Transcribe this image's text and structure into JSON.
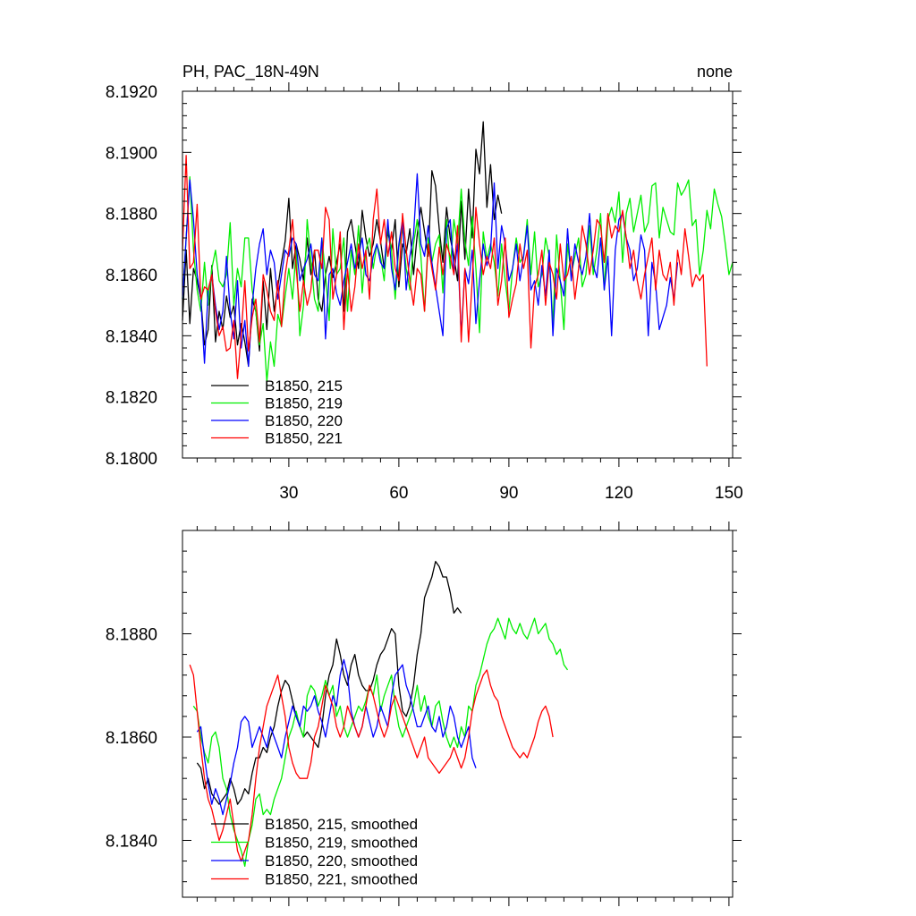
{
  "chart_data": [
    {
      "type": "line",
      "title": "PH, PAC_18N-49N",
      "right_title": "none",
      "xlim": [
        1,
        151
      ],
      "ylim": [
        8.18,
        8.192
      ],
      "x_ticks": [
        30,
        60,
        90,
        120,
        150
      ],
      "x_tick_labels": [
        "30",
        "60",
        "90",
        "120",
        "150"
      ],
      "y_ticks": [
        8.18,
        8.182,
        8.184,
        8.186,
        8.188,
        8.19,
        8.192
      ],
      "y_tick_labels": [
        "8.1800",
        "8.1820",
        "8.1840",
        "8.1860",
        "8.1880",
        "8.1900",
        "8.1920"
      ],
      "legend_position": "bottom-left",
      "series": [
        {
          "name": "B1850, 215",
          "color": "#000000",
          "x0": 1,
          "values": [
            8.1845,
            8.1868,
            8.1844,
            8.1862,
            8.1858,
            8.1852,
            8.1837,
            8.1842,
            8.1863,
            8.1838,
            8.1848,
            8.1842,
            8.1853,
            8.1846,
            8.185,
            8.1837,
            8.1844,
            8.1838,
            8.183,
            8.1852,
            8.1848,
            8.1835,
            8.1858,
            8.1842,
            8.1862,
            8.1848,
            8.1856,
            8.1864,
            8.1871,
            8.1885,
            8.1862,
            8.187,
            8.1865,
            8.1858,
            8.1872,
            8.186,
            8.1868,
            8.1852,
            8.1848,
            8.186,
            8.1866,
            8.1859,
            8.1864,
            8.187,
            8.1848,
            8.1874,
            8.1878,
            8.187,
            8.1862,
            8.1881,
            8.1872,
            8.1866,
            8.187,
            8.1878,
            8.1871,
            8.1862,
            8.1874,
            8.1868,
            8.1878,
            8.1856,
            8.187,
            8.1867,
            8.1875,
            8.186,
            8.1873,
            8.1882,
            8.1874,
            8.1866,
            8.1894,
            8.1889,
            8.1875,
            8.1864,
            8.1882,
            8.1872,
            8.1866,
            8.1858,
            8.1884,
            8.1865,
            8.1888,
            8.1872,
            8.1901,
            8.1893,
            8.191,
            8.1882,
            8.1896,
            8.1878,
            8.1886,
            8.188
          ]
        },
        {
          "name": "B1850, 219",
          "color": "#00ee00",
          "x0": 1,
          "values": [
            8.1852,
            8.1872,
            8.1892,
            8.1868,
            8.1855,
            8.1848,
            8.1864,
            8.185,
            8.1862,
            8.1868,
            8.1858,
            8.1856,
            8.186,
            8.1877,
            8.185,
            8.1862,
            8.1856,
            8.1872,
            8.1872,
            8.1855,
            8.1848,
            8.1837,
            8.1844,
            8.1825,
            8.1838,
            8.183,
            8.1847,
            8.1843,
            8.1853,
            8.1862,
            8.1852,
            8.1868,
            8.184,
            8.185,
            8.1878,
            8.1865,
            8.1852,
            8.1848,
            8.1872,
            8.186,
            8.1845,
            8.1875,
            8.186,
            8.1862,
            8.1872,
            8.1848,
            8.1868,
            8.186,
            8.1876,
            8.1854,
            8.1868,
            8.1872,
            8.1862,
            8.187,
            8.1866,
            8.1858,
            8.1876,
            8.1868,
            8.1852,
            8.1869,
            8.1875,
            8.1862,
            8.1855,
            8.187,
            8.1878,
            8.1866,
            8.1848,
            8.1872,
            8.1864,
            8.187,
            8.1873,
            8.1854,
            8.1878,
            8.1862,
            8.1878,
            8.187,
            8.1888,
            8.1871,
            8.1863,
            8.1879,
            8.1862,
            8.1841,
            8.1874,
            8.1865,
            8.187,
            8.1864,
            8.1853,
            8.187,
            8.1858,
            8.1848,
            8.1862,
            8.1872,
            8.1864,
            8.1866,
            8.1878,
            8.186,
            8.1874,
            8.1856,
            8.186,
            8.1872,
            8.1866,
            8.1844,
            8.1873,
            8.1858,
            8.1842,
            8.187,
            8.186,
            8.1866,
            8.1872,
            8.1856,
            8.186,
            8.1876,
            8.186,
            8.1868,
            8.188,
            8.1855,
            8.1878,
            8.1882,
            8.1877,
            8.1887,
            8.1864,
            8.188,
            8.1885,
            8.1874,
            8.188,
            8.1886,
            8.1874,
            8.1877,
            8.1889,
            8.189,
            8.1872,
            8.1882,
            8.1878,
            8.1874,
            8.1873,
            8.189,
            8.1886,
            8.1888,
            8.1891,
            8.1876,
            8.1878,
            8.186,
            8.1868,
            8.1881,
            8.1875,
            8.1888,
            8.1883,
            8.1879,
            8.187,
            8.186,
            8.1864
          ]
        },
        {
          "name": "B1850, 220",
          "color": "#0000ff",
          "x0": 1,
          "values": [
            8.1852,
            8.1872,
            8.1891,
            8.1878,
            8.186,
            8.1852,
            8.1831,
            8.1855,
            8.186,
            8.185,
            8.1842,
            8.1848,
            8.1866,
            8.1848,
            8.1839,
            8.1858,
            8.1836,
            8.1845,
            8.183,
            8.185,
            8.1862,
            8.187,
            8.1875,
            8.186,
            8.1868,
            8.1864,
            8.1852,
            8.186,
            8.1868,
            8.1866,
            8.1872,
            8.187,
            8.1858,
            8.1862,
            8.1865,
            8.187,
            8.186,
            8.1858,
            8.1872,
            8.1839,
            8.186,
            8.1862,
            8.1854,
            8.185,
            8.1858,
            8.1864,
            8.187,
            8.1862,
            8.1866,
            8.1872,
            8.186,
            8.1858,
            8.1866,
            8.187,
            8.1864,
            8.1862,
            8.1878,
            8.1862,
            8.1855,
            8.187,
            8.1878,
            8.1855,
            8.1866,
            8.1873,
            8.1893,
            8.187,
            8.1866,
            8.1876,
            8.1864,
            8.1856,
            8.1848,
            8.184,
            8.1875,
            8.1878,
            8.186,
            8.187,
            8.184,
            8.1862,
            8.1857,
            8.1868,
            8.1844,
            8.1858,
            8.187,
            8.1863,
            8.1868,
            8.189,
            8.1862,
            8.1876,
            8.187,
            8.1858,
            8.1862,
            8.187,
            8.1858,
            8.1866,
            8.1876,
            8.1855,
            8.1858,
            8.185,
            8.1863,
            8.1853,
            8.1868,
            8.184,
            8.1862,
            8.1858,
            8.1853,
            8.1875,
            8.1858,
            8.187,
            8.1864,
            8.186,
            8.1866,
            8.188,
            8.1863,
            8.1859,
            8.1872,
            8.1855,
            8.1866,
            8.184,
            8.1868,
            8.1878,
            8.188,
            8.1872,
            8.1868,
            8.1858,
            8.1862,
            8.1873,
            8.1868,
            8.184,
            8.1864,
            8.1857,
            8.1842,
            8.1846,
            8.185,
            8.1859,
            8.1852,
            8.1864
          ]
        },
        {
          "name": "B1850, 221",
          "color": "#ff0000",
          "x0": 1,
          "values": [
            8.1868,
            8.1899,
            8.1862,
            8.1864,
            8.1883,
            8.1852,
            8.1856,
            8.1855,
            8.186,
            8.1848,
            8.184,
            8.1843,
            8.1835,
            8.1836,
            8.1845,
            8.1826,
            8.184,
            8.1858,
            8.1835,
            8.1846,
            8.1852,
            8.1838,
            8.186,
            8.1855,
            8.1848,
            8.1845,
            8.1858,
            8.1843,
            8.186,
            8.1868,
            8.1878,
            8.1862,
            8.1848,
            8.1858,
            8.185,
            8.1855,
            8.1868,
            8.1868,
            8.1862,
            8.1882,
            8.1878,
            8.1852,
            8.186,
            8.1874,
            8.1842,
            8.1862,
            8.1848,
            8.1856,
            8.187,
            8.1862,
            8.1868,
            8.1852,
            8.1878,
            8.1888,
            8.187,
            8.1878,
            8.1866,
            8.1874,
            8.1862,
            8.1858,
            8.188,
            8.1868,
            8.1858,
            8.185,
            8.1862,
            8.186,
            8.1848,
            8.187,
            8.1862,
            8.1855,
            8.1869,
            8.186,
            8.187,
            8.1866,
            8.186,
            8.1876,
            8.1838,
            8.1862,
            8.1838,
            8.1858,
            8.1882,
            8.187,
            8.186,
            8.1866,
            8.1862,
            8.1872,
            8.185,
            8.1858,
            8.1872,
            8.1846,
            8.1852,
            8.1857,
            8.187,
            8.1862,
            8.1868,
            8.1836,
            8.1856,
            8.186,
            8.1868,
            8.185,
            8.1864,
            8.186,
            8.1852,
            8.187,
            8.1858,
            8.186,
            8.1866,
            8.1852,
            8.1862,
            8.1876,
            8.187,
            8.186,
            8.1868,
            8.1878,
            8.1876,
            8.1864,
            8.188,
            8.1872,
            8.1876,
            8.1874,
            8.1881,
            8.1872,
            8.1862,
            8.1868,
            8.1858,
            8.1852,
            8.186,
            8.1866,
            8.1872,
            8.1855,
            8.1868,
            8.186,
            8.1858,
            8.1864,
            8.185,
            8.1868,
            8.186,
            8.1875,
            8.1866,
            8.1856,
            8.186,
            8.1858,
            8.186,
            8.183
          ]
        }
      ]
    },
    {
      "type": "line",
      "title": "",
      "xlim": [
        1,
        151
      ],
      "ylim": [
        8.1829,
        8.19
      ],
      "x_ticks": [
        30,
        60,
        90,
        120,
        150
      ],
      "x_tick_labels": [],
      "y_ticks": [
        8.184,
        8.186,
        8.188
      ],
      "y_tick_labels": [
        "8.1840",
        "8.1860",
        "8.1880"
      ],
      "legend_position": "bottom-left",
      "series": [
        {
          "name": "B1850, 215, smoothed",
          "color": "#000000",
          "x0": 5,
          "values": [
            8.1855,
            8.1854,
            8.185,
            8.1852,
            8.1849,
            8.1848,
            8.1847,
            8.1848,
            8.1849,
            8.1852,
            8.185,
            8.1847,
            8.1848,
            8.185,
            8.1849,
            8.1853,
            8.1856,
            8.1856,
            8.1858,
            8.1857,
            8.186,
            8.1862,
            8.1866,
            8.1869,
            8.1871,
            8.187,
            8.1867,
            8.1864,
            8.1862,
            8.186,
            8.1861,
            8.186,
            8.1859,
            8.1858,
            8.1862,
            8.1868,
            8.1872,
            8.1874,
            8.1879,
            8.1876,
            8.1872,
            8.187,
            8.1874,
            8.1876,
            8.1872,
            8.187,
            8.1869,
            8.1869,
            8.1871,
            8.1874,
            8.1876,
            8.1877,
            8.1879,
            8.1881,
            8.188,
            8.187,
            8.1865,
            8.1864,
            8.1866,
            8.187,
            8.1876,
            8.188,
            8.1887,
            8.1889,
            8.1891,
            8.1894,
            8.1893,
            8.1891,
            8.1891,
            8.1888,
            8.1884,
            8.1885,
            8.1884
          ]
        },
        {
          "name": "B1850, 219, smoothed",
          "color": "#00ee00",
          "x0": 4,
          "values": [
            8.1866,
            8.1865,
            8.186,
            8.1857,
            8.1855,
            8.186,
            8.1861,
            8.1858,
            8.1852,
            8.185,
            8.1845,
            8.1842,
            8.184,
            8.1838,
            8.1835,
            8.184,
            8.1843,
            8.1848,
            8.1849,
            8.1845,
            8.1846,
            8.1845,
            8.1848,
            8.185,
            8.1852,
            8.1856,
            8.186,
            8.1862,
            8.1865,
            8.1862,
            8.186,
            8.1868,
            8.187,
            8.1869,
            8.1866,
            8.1868,
            8.1871,
            8.1868,
            8.187,
            8.1864,
            8.1866,
            8.1862,
            8.186,
            8.1862,
            8.1864,
            8.1866,
            8.1865,
            8.1867,
            8.187,
            8.1868,
            8.1872,
            8.1865,
            8.1868,
            8.187,
            8.1872,
            8.1866,
            8.1862,
            8.186,
            8.1862,
            8.1864,
            8.1866,
            8.187,
            8.1865,
            8.1868,
            8.1864,
            8.1862,
            8.1866,
            8.1867,
            8.1863,
            8.186,
            8.1858,
            8.186,
            8.1858,
            8.1862,
            8.186,
            8.1866,
            8.1865,
            8.187,
            8.1872,
            8.1875,
            8.1878,
            8.188,
            8.1881,
            8.1883,
            8.1881,
            8.1879,
            8.1883,
            8.1881,
            8.188,
            8.1882,
            8.188,
            8.1879,
            8.1881,
            8.1883,
            8.188,
            8.1881,
            8.1882,
            8.1879,
            8.1878,
            8.1876,
            8.1877,
            8.1874,
            8.1873
          ]
        },
        {
          "name": "B1850, 220, smoothed",
          "color": "#0000ff",
          "x0": 5,
          "values": [
            8.1861,
            8.1862,
            8.1856,
            8.1851,
            8.1847,
            8.185,
            8.1848,
            8.1845,
            8.1848,
            8.1851,
            8.1855,
            8.1858,
            8.1863,
            8.1864,
            8.1863,
            8.1858,
            8.186,
            8.1862,
            8.186,
            8.1858,
            8.1862,
            8.186,
            8.1858,
            8.1856,
            8.186,
            8.1863,
            8.1866,
            8.1864,
            8.1862,
            8.1866,
            8.1865,
            8.1866,
            8.1868,
            8.1865,
            8.1863,
            8.186,
            8.1864,
            8.1868,
            8.1866,
            8.1872,
            8.1875,
            8.1872,
            8.1865,
            8.1862,
            8.186,
            8.1862,
            8.1866,
            8.1863,
            8.186,
            8.1862,
            8.1866,
            8.1864,
            8.1862,
            8.1868,
            8.1872,
            8.1873,
            8.1874,
            8.187,
            8.1868,
            8.1865,
            8.1862,
            8.1862,
            8.1864,
            8.1866,
            8.1862,
            8.1861,
            8.1864,
            8.186,
            8.1862,
            8.1866,
            8.1864,
            8.186,
            8.1858,
            8.186,
            8.1862,
            8.1856,
            8.1854
          ]
        },
        {
          "name": "B1850, 221, smoothed",
          "color": "#ff0000",
          "x0": 3,
          "values": [
            8.1874,
            8.1872,
            8.1865,
            8.1858,
            8.1852,
            8.1848,
            8.1846,
            8.1843,
            8.184,
            8.1842,
            8.1845,
            8.1848,
            8.1843,
            8.1838,
            8.1836,
            8.1838,
            8.184,
            8.1845,
            8.1852,
            8.1858,
            8.1862,
            8.1866,
            8.1868,
            8.187,
            8.1872,
            8.1868,
            8.1864,
            8.1858,
            8.1855,
            8.1853,
            8.1852,
            8.1852,
            8.1852,
            8.1855,
            8.186,
            8.1862,
            8.1866,
            8.187,
            8.1868,
            8.1866,
            8.1862,
            8.186,
            8.1862,
            8.1866,
            8.1864,
            8.1862,
            8.186,
            8.1862,
            8.1866,
            8.187,
            8.1868,
            8.1865,
            8.1862,
            8.186,
            8.1862,
            8.1866,
            8.1868,
            8.1866,
            8.1864,
            8.1862,
            8.186,
            8.1858,
            8.1856,
            8.1858,
            8.186,
            8.1856,
            8.1855,
            8.1854,
            8.1853,
            8.1854,
            8.1855,
            8.1856,
            8.1858,
            8.1856,
            8.1854,
            8.1856,
            8.186,
            8.1865,
            8.1868,
            8.187,
            8.1872,
            8.1873,
            8.187,
            8.1868,
            8.1867,
            8.1864,
            8.1862,
            8.186,
            8.1858,
            8.1857,
            8.1856,
            8.1857,
            8.1856,
            8.1858,
            8.186,
            8.1863,
            8.1865,
            8.1866,
            8.1864,
            8.186
          ]
        }
      ]
    }
  ]
}
